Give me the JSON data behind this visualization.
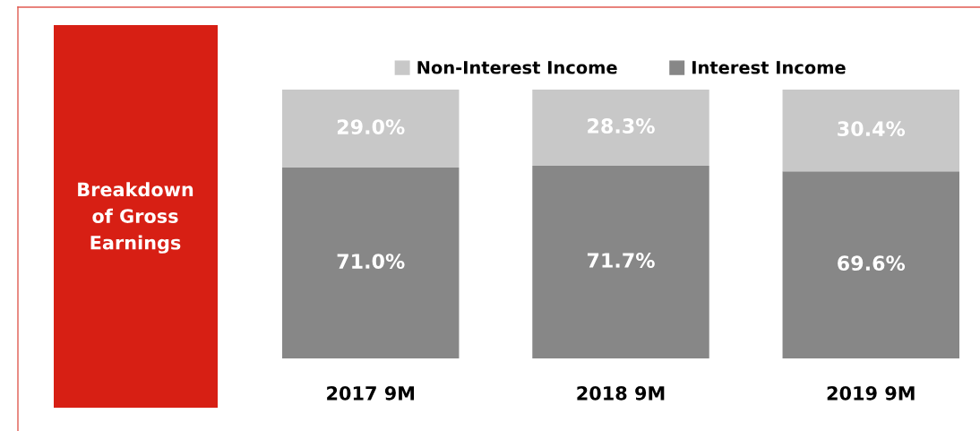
{
  "chart_data": {
    "type": "bar",
    "title": "Breakdown of Gross Earnings",
    "categories": [
      "2017 9M",
      "2018 9M",
      "2019 9M"
    ],
    "stacked": true,
    "legend": "top",
    "series": [
      {
        "name": "Interest Income",
        "color": "#878787",
        "values": [
          71.0,
          71.7,
          69.6
        ],
        "value_labels": [
          "71.0%",
          "71.7%",
          "69.6%"
        ]
      },
      {
        "name": "Non-Interest Income",
        "color": "#c8c8c8",
        "values": [
          29.0,
          28.3,
          30.4
        ],
        "value_labels": [
          "29.0%",
          "28.3%",
          "30.4%"
        ]
      }
    ]
  }
}
